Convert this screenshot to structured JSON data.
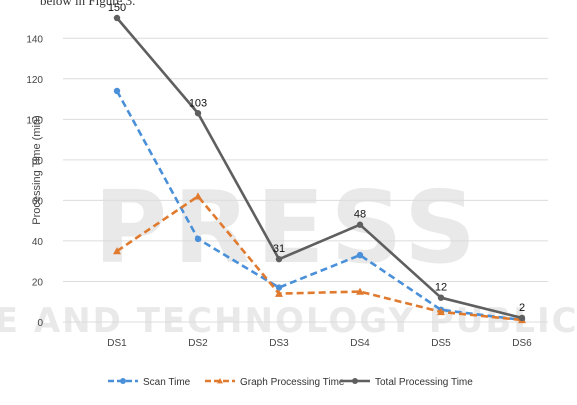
{
  "page": {
    "top_text": "below in Figure 3."
  },
  "watermark": {
    "big": "PRESS",
    "line": "SCIENCE AND TECHNOLOGY PUBLICATIONS",
    "color": "#cfcfcf"
  },
  "chart_data": {
    "type": "line",
    "categories": [
      "DS1",
      "DS2",
      "DS3",
      "DS4",
      "DS5",
      "DS6"
    ],
    "ylabel": "Processing Time (min)",
    "ylim": [
      0,
      150
    ],
    "yticks": [
      0,
      20,
      40,
      60,
      80,
      100,
      120,
      140
    ],
    "grid": true,
    "legend_position": "bottom",
    "series": [
      {
        "name": "Scan Time",
        "values": [
          114,
          41,
          17,
          33,
          6,
          1
        ],
        "color": "#4a90d9",
        "dash": "dashed",
        "marker": "circle"
      },
      {
        "name": "Graph Processing Time",
        "values": [
          35,
          62,
          14,
          15,
          5,
          1
        ],
        "color": "#e07a2e",
        "dash": "dashed",
        "marker": "triangle"
      },
      {
        "name": "Total Processing Time",
        "values": [
          150,
          103,
          31,
          48,
          12,
          2
        ],
        "color": "#5f5f5f",
        "dash": "solid",
        "marker": "circle",
        "labels": [
          "150",
          "103",
          "31",
          "48",
          "12",
          "2"
        ]
      }
    ]
  }
}
